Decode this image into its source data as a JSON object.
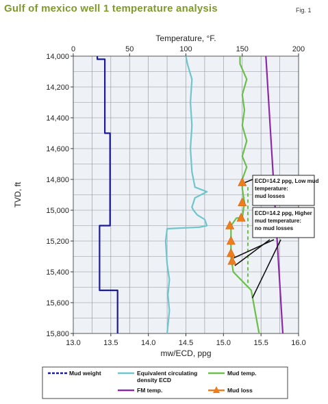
{
  "title": "Gulf of mexico well 1 temperature analysis",
  "fig_label": "Fig. 1",
  "chart_data": {
    "type": "line",
    "y_axis": {
      "label": "TVD, ft",
      "range": [
        14000,
        15800
      ],
      "inverted": true,
      "ticks": [
        "14,000",
        "14,200",
        "14,400",
        "14,600",
        "14,800",
        "15,000",
        "15,200",
        "15,400",
        "15,600",
        "15,800"
      ]
    },
    "x_bottom": {
      "label": "mw/ECD, ppg",
      "range": [
        13.0,
        16.0
      ],
      "ticks": [
        "13.0",
        "13.5",
        "14.0",
        "14.5",
        "15.0",
        "15.5",
        "16.0"
      ]
    },
    "x_top": {
      "label": "Temperature, °F.",
      "range": [
        0,
        200
      ],
      "ticks": [
        "0",
        "50",
        "100",
        "150",
        "200"
      ]
    },
    "grid": true,
    "series": [
      {
        "name": "Mud weight",
        "axis": "bottom",
        "color": "#1a1a9c",
        "points": [
          [
            13.32,
            14000
          ],
          [
            13.32,
            14020
          ],
          [
            13.42,
            14020
          ],
          [
            13.42,
            14500
          ],
          [
            13.49,
            14500
          ],
          [
            13.49,
            15100
          ],
          [
            13.35,
            15100
          ],
          [
            13.35,
            15520
          ],
          [
            13.59,
            15520
          ],
          [
            13.59,
            15800
          ]
        ]
      },
      {
        "name": "Equivalent circulating density ECD",
        "axis": "bottom",
        "color": "#6ec6cc",
        "points": [
          [
            14.5,
            14000
          ],
          [
            14.52,
            14050
          ],
          [
            14.58,
            14150
          ],
          [
            14.56,
            14300
          ],
          [
            14.58,
            14450
          ],
          [
            14.56,
            14600
          ],
          [
            14.58,
            14750
          ],
          [
            14.62,
            14850
          ],
          [
            14.78,
            14880
          ],
          [
            14.62,
            14920
          ],
          [
            14.58,
            14980
          ],
          [
            14.6,
            15000
          ],
          [
            14.65,
            15030
          ],
          [
            14.75,
            15060
          ],
          [
            14.78,
            15100
          ],
          [
            14.68,
            15110
          ],
          [
            14.25,
            15120
          ],
          [
            14.23,
            15200
          ],
          [
            14.25,
            15350
          ],
          [
            14.28,
            15450
          ],
          [
            14.26,
            15550
          ],
          [
            14.28,
            15650
          ],
          [
            14.25,
            15800
          ]
        ]
      },
      {
        "name": "Mud temp.",
        "axis": "top",
        "color": "#6abf4b",
        "points": [
          [
            148,
            14000
          ],
          [
            148,
            14050
          ],
          [
            154,
            14150
          ],
          [
            150,
            14250
          ],
          [
            152,
            14350
          ],
          [
            150,
            14450
          ],
          [
            154,
            14550
          ],
          [
            150,
            14650
          ],
          [
            154,
            14720
          ],
          [
            150,
            14800
          ],
          [
            150,
            14860
          ],
          [
            152,
            14950
          ],
          [
            150,
            15050
          ],
          [
            145,
            15050
          ],
          [
            140,
            15100
          ],
          [
            140,
            15300
          ],
          [
            142,
            15400
          ],
          [
            158,
            15520
          ],
          [
            160,
            15600
          ],
          [
            165,
            15800
          ]
        ]
      },
      {
        "name": "FM temp.",
        "axis": "top",
        "color": "#8a2aa8",
        "points": [
          [
            171,
            14000
          ],
          [
            186,
            15800
          ]
        ]
      },
      {
        "name": "Mud loss",
        "axis": "top",
        "color": "#ee7d1e",
        "points": [
          [
            150,
            14820
          ],
          [
            150,
            14950
          ],
          [
            149,
            15050
          ],
          [
            139,
            15100
          ],
          [
            140,
            15200
          ],
          [
            140,
            15280
          ],
          [
            141,
            15330
          ]
        ]
      }
    ],
    "dashed_line": {
      "axis": "top",
      "color": "#6abf4b",
      "x": 155,
      "y_range": [
        14850,
        15500
      ]
    },
    "annotations": [
      {
        "lines": [
          "ECD=14.2 ppg, Low mud",
          "temperature:",
          "mud losses"
        ]
      },
      {
        "lines": [
          "ECD=14.2 ppg, Higher",
          "mud temperature:",
          "no mud losses"
        ]
      }
    ],
    "legend": {
      "placement": "bottom",
      "items": [
        {
          "label": "Mud weight",
          "series": 0
        },
        {
          "label": "Equivalent circulating",
          "label2": "density ECD",
          "series": 1
        },
        {
          "label": "Mud temp.",
          "series": 2
        },
        {
          "label": "FM temp.",
          "series": 3
        },
        {
          "label": "Mud loss",
          "series": 4
        }
      ]
    }
  }
}
